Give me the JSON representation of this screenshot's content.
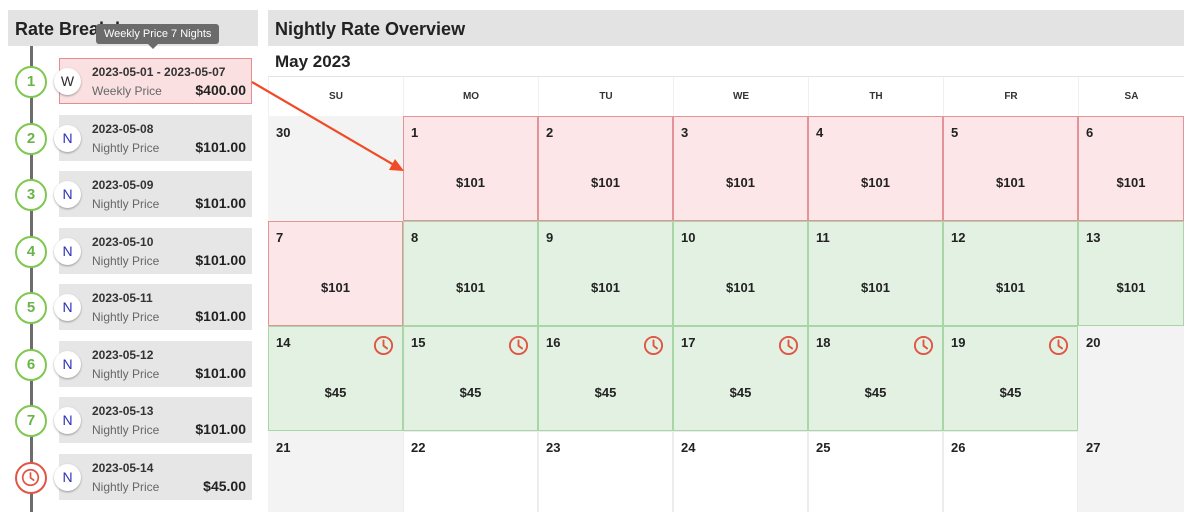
{
  "left_panel": {
    "title": "Rate Breakdown",
    "tooltip": "Weekly Price 7 Nights",
    "rows": [
      {
        "step": "1",
        "badge": "W",
        "dates": "2023-05-01 - 2023-05-07",
        "type": "Weekly Price",
        "amount": "$400.00"
      },
      {
        "step": "2",
        "badge": "N",
        "dates": "2023-05-08",
        "type": "Nightly Price",
        "amount": "$101.00"
      },
      {
        "step": "3",
        "badge": "N",
        "dates": "2023-05-09",
        "type": "Nightly Price",
        "amount": "$101.00"
      },
      {
        "step": "4",
        "badge": "N",
        "dates": "2023-05-10",
        "type": "Nightly Price",
        "amount": "$101.00"
      },
      {
        "step": "5",
        "badge": "N",
        "dates": "2023-05-11",
        "type": "Nightly Price",
        "amount": "$101.00"
      },
      {
        "step": "6",
        "badge": "N",
        "dates": "2023-05-12",
        "type": "Nightly Price",
        "amount": "$101.00"
      },
      {
        "step": "7",
        "badge": "N",
        "dates": "2023-05-13",
        "type": "Nightly Price",
        "amount": "$101.00"
      },
      {
        "step": "clock-icon",
        "badge": "N",
        "dates": "2023-05-14",
        "type": "Nightly Price",
        "amount": "$45.00"
      }
    ]
  },
  "right_panel": {
    "title": "Nightly Rate Overview",
    "month": "May 2023",
    "weekdays": [
      "SU",
      "MO",
      "TU",
      "WE",
      "TH",
      "FR",
      "SA"
    ],
    "days": [
      {
        "num": "30",
        "price": "",
        "status": "grey",
        "clock": false
      },
      {
        "num": "1",
        "price": "$101",
        "status": "red",
        "clock": false
      },
      {
        "num": "2",
        "price": "$101",
        "status": "red",
        "clock": false
      },
      {
        "num": "3",
        "price": "$101",
        "status": "red",
        "clock": false
      },
      {
        "num": "4",
        "price": "$101",
        "status": "red",
        "clock": false
      },
      {
        "num": "5",
        "price": "$101",
        "status": "red",
        "clock": false
      },
      {
        "num": "6",
        "price": "$101",
        "status": "red",
        "clock": false
      },
      {
        "num": "7",
        "price": "$101",
        "status": "red",
        "clock": false
      },
      {
        "num": "8",
        "price": "$101",
        "status": "green",
        "clock": false
      },
      {
        "num": "9",
        "price": "$101",
        "status": "green",
        "clock": false
      },
      {
        "num": "10",
        "price": "$101",
        "status": "green",
        "clock": false
      },
      {
        "num": "11",
        "price": "$101",
        "status": "green",
        "clock": false
      },
      {
        "num": "12",
        "price": "$101",
        "status": "green",
        "clock": false
      },
      {
        "num": "13",
        "price": "$101",
        "status": "green",
        "clock": false
      },
      {
        "num": "14",
        "price": "$45",
        "status": "green",
        "clock": true
      },
      {
        "num": "15",
        "price": "$45",
        "status": "green",
        "clock": true
      },
      {
        "num": "16",
        "price": "$45",
        "status": "green",
        "clock": true
      },
      {
        "num": "17",
        "price": "$45",
        "status": "green",
        "clock": true
      },
      {
        "num": "18",
        "price": "$45",
        "status": "green",
        "clock": true
      },
      {
        "num": "19",
        "price": "$45",
        "status": "green",
        "clock": true
      },
      {
        "num": "20",
        "price": "",
        "status": "grey",
        "clock": false
      },
      {
        "num": "21",
        "price": "",
        "status": "grey",
        "clock": false
      },
      {
        "num": "22",
        "price": "",
        "status": "white",
        "clock": false
      },
      {
        "num": "23",
        "price": "",
        "status": "white",
        "clock": false
      },
      {
        "num": "24",
        "price": "",
        "status": "white",
        "clock": false
      },
      {
        "num": "25",
        "price": "",
        "status": "white",
        "clock": false
      },
      {
        "num": "26",
        "price": "",
        "status": "white",
        "clock": false
      },
      {
        "num": "27",
        "price": "",
        "status": "grey",
        "clock": false
      }
    ]
  },
  "colors": {
    "weekly_fill": "#fde6e7",
    "weekly_border": "#e39399",
    "nightly_fill": "#e3f1e2",
    "nightly_border": "#a9d6a6",
    "step_green": "#7ec850",
    "clock_red": "#e05545",
    "arrow": "#f04a26",
    "header_bg": "#e3e3e3"
  }
}
